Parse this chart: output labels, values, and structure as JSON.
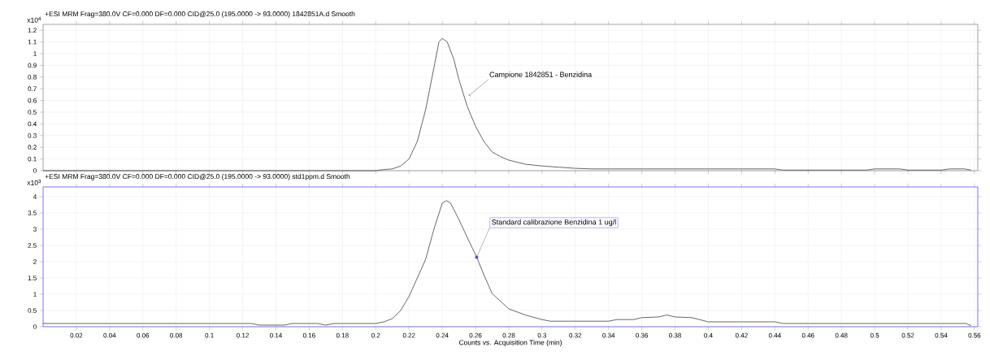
{
  "chart_data": [
    {
      "type": "line",
      "title": "+ESI MRM Frag=380.0V CF=0.000 DF=0.000 CID@25.0 (195.0000 -> 93.0000) 1842851A.d  Smooth",
      "ylabel": "x10$^{4}$",
      "x": [
        0,
        0.2,
        0.205,
        0.21,
        0.215,
        0.22,
        0.225,
        0.23,
        0.235,
        0.238,
        0.24,
        0.243,
        0.247,
        0.25,
        0.255,
        0.26,
        0.265,
        0.27,
        0.275,
        0.28,
        0.29,
        0.3,
        0.31,
        0.32,
        0.33,
        0.44,
        0.445,
        0.495,
        0.5,
        0.515,
        0.52,
        0.54,
        0.545,
        0.554,
        0.558
      ],
      "values": [
        0,
        0,
        0.01,
        0.015,
        0.04,
        0.1,
        0.25,
        0.52,
        0.88,
        1.1,
        1.13,
        1.1,
        0.95,
        0.78,
        0.55,
        0.38,
        0.25,
        0.16,
        0.12,
        0.09,
        0.055,
        0.04,
        0.03,
        0.02,
        0.015,
        0.015,
        0.005,
        0.005,
        0.015,
        0.015,
        0.005,
        0.005,
        0.015,
        0.015,
        0.005
      ],
      "color": "#404040",
      "xlim": [
        0,
        0.562
      ],
      "ylim": [
        0,
        1.25
      ],
      "xticks": [
        0.02,
        0.04,
        0.06,
        0.08,
        0.1,
        0.12,
        0.14,
        0.16,
        0.18,
        0.2,
        0.22,
        0.24,
        0.26,
        0.28,
        0.3,
        0.32,
        0.34,
        0.36,
        0.38,
        0.4,
        0.42,
        0.44,
        0.46,
        0.48,
        0.5,
        0.52,
        0.54,
        0.56
      ],
      "yticks": [
        0,
        0.1,
        0.2,
        0.3,
        0.4,
        0.5,
        0.6,
        0.7,
        0.8,
        0.9,
        1,
        1.1,
        1.2
      ],
      "grid": true,
      "tick_labels": "y",
      "annotations": [
        {
          "text": "Campione 1842851 - Benzidina",
          "x": 0.256,
          "y": 0.64
        }
      ]
    },
    {
      "type": "line",
      "title": "+ESI MRM Frag=380.0V CF=0.000 DF=0.000 CID@25.0 (195.0000 -> 93.0000) std1ppm.d  Smooth",
      "ylabel": "x10$^{3}$",
      "xlabel": "Counts vs. Acquisition Time (min)",
      "x": [
        0,
        0.125,
        0.13,
        0.145,
        0.15,
        0.165,
        0.17,
        0.175,
        0.2,
        0.205,
        0.21,
        0.215,
        0.22,
        0.225,
        0.23,
        0.235,
        0.24,
        0.2425,
        0.245,
        0.25,
        0.255,
        0.2607,
        0.265,
        0.27,
        0.28,
        0.29,
        0.3,
        0.305,
        0.34,
        0.345,
        0.355,
        0.36,
        0.37,
        0.375,
        0.38,
        0.39,
        0.4,
        0.44,
        0.445,
        0.555,
        0.558
      ],
      "values": [
        0.1,
        0.1,
        0.05,
        0.05,
        0.1,
        0.1,
        0.05,
        0.1,
        0.1,
        0.15,
        0.25,
        0.5,
        0.93,
        1.5,
        2.07,
        3.0,
        3.8,
        3.88,
        3.8,
        3.3,
        2.75,
        2.14,
        1.6,
        1.02,
        0.55,
        0.36,
        0.22,
        0.17,
        0.17,
        0.22,
        0.22,
        0.28,
        0.3,
        0.36,
        0.3,
        0.28,
        0.15,
        0.15,
        0.1,
        0.1,
        0.03
      ],
      "color": "#404040",
      "xlim": [
        0,
        0.562
      ],
      "ylim": [
        0,
        4.3
      ],
      "xticks": [
        0.02,
        0.04,
        0.06,
        0.08,
        0.1,
        0.12,
        0.14,
        0.16,
        0.18,
        0.2,
        0.22,
        0.24,
        0.26,
        0.28,
        0.3,
        0.32,
        0.34,
        0.36,
        0.38,
        0.4,
        0.42,
        0.44,
        0.46,
        0.48,
        0.5,
        0.52,
        0.54,
        0.56
      ],
      "yticks": [
        0,
        0.5,
        1,
        1.5,
        2,
        2.5,
        3,
        3.5,
        4
      ],
      "grid": true,
      "annotations": [
        {
          "text": "Standard calibrazione Benzidina 1 ug/l",
          "x": 0.2607,
          "y": 2.14
        }
      ]
    }
  ]
}
